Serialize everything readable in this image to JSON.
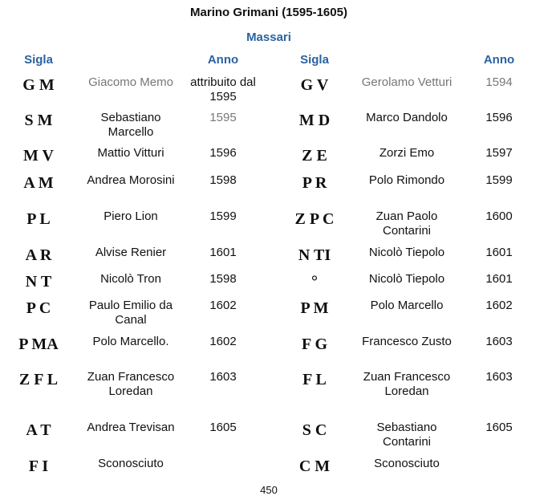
{
  "title": "Marino Grimani (1595-1605)",
  "subtitle": "Massari",
  "headers": {
    "sigla": "Sigla",
    "anno": "Anno"
  },
  "rows": [
    {
      "left": {
        "sigla": "G M",
        "name": "Giacomo Memo",
        "anno": "attribuito dal 1595",
        "name_gray": true
      },
      "right": {
        "sigla": "G V",
        "name": "Gerolamo Vetturi",
        "anno": "1594",
        "name_gray": true,
        "anno_gray": true
      }
    },
    {
      "left": {
        "sigla": "S M",
        "name": "Sebastiano Marcello",
        "anno": "1595",
        "anno_gray": true
      },
      "right": {
        "sigla": "M D",
        "name": "Marco Dandolo",
        "anno": "1596"
      }
    },
    {
      "left": {
        "sigla": "M V",
        "name": "Mattio Vitturi",
        "anno": "1596"
      },
      "right": {
        "sigla": "Z E",
        "name": "Zorzi Emo",
        "anno": "1597"
      }
    },
    {
      "left": {
        "sigla": "A M",
        "name": "Andrea Morosini",
        "anno": "1598"
      },
      "right": {
        "sigla": "P R",
        "name": "Polo Rimondo",
        "anno": "1599"
      }
    },
    {
      "left": {
        "sigla": "P L",
        "name": "Piero Lion",
        "anno": "1599"
      },
      "right": {
        "sigla": "Z P C",
        "name": "Zuan Paolo Contarini",
        "anno": "1600"
      }
    },
    {
      "left": {
        "sigla": "A R",
        "name": "Alvise Renier",
        "anno": "1601"
      },
      "right": {
        "sigla": "N TI",
        "name": "Nicolò Tiepolo",
        "anno": "1601"
      }
    },
    {
      "left": {
        "sigla": "N T",
        "name": "Nicolò Tron",
        "anno": "1598"
      },
      "right": {
        "sigla": "°",
        "name": "Nicolò Tiepolo",
        "anno": "1601"
      }
    },
    {
      "left": {
        "sigla": "P C",
        "name": "Paulo Emilio da Canal",
        "anno": "1602"
      },
      "right": {
        "sigla": "P M",
        "name": "Polo Marcello",
        "anno": "1602"
      }
    },
    {
      "left": {
        "sigla": "P MA",
        "name": "Polo Marcello.",
        "anno": "1602"
      },
      "right": {
        "sigla": "F G",
        "name": "Francesco Zusto",
        "anno": "1603"
      }
    },
    {
      "left": {
        "sigla": "Z F L",
        "name": "Zuan Francesco Loredan",
        "anno": "1603"
      },
      "right": {
        "sigla": "F L",
        "name": "Zuan Francesco Loredan",
        "anno": "1603"
      }
    },
    {
      "left": {
        "sigla": "A T",
        "name": "Andrea Trevisan",
        "anno": "1605"
      },
      "right": {
        "sigla": "S C",
        "name": "Sebastiano Contarini",
        "anno": "1605"
      }
    },
    {
      "left": {
        "sigla": "F I",
        "name": "Sconosciuto",
        "anno": ""
      },
      "right": {
        "sigla": "C M",
        "name": "Sconosciuto",
        "anno": ""
      }
    }
  ],
  "page_number": "450"
}
